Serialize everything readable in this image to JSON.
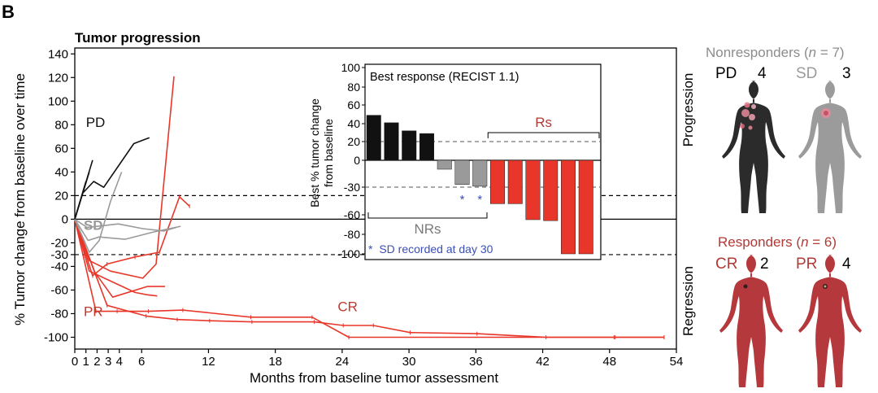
{
  "panel_label": "B",
  "colors": {
    "pd": "#111111",
    "sd": "#9a9a9a",
    "responder": "#e8372a",
    "responder_text": "#c0392b",
    "title_red": "#b03a36",
    "nonresponder_title": "#8c8c8c",
    "note_blue": "#3b4fb5",
    "body_dark": "#2b2b2b",
    "body_grey": "#9b9b9b",
    "body_red": "#b5383c"
  },
  "right_panel": {
    "progression_label": "Progression",
    "regression_label": "Regression",
    "nonresponders": {
      "title": "Nonresponders (",
      "n_italic": "n",
      "title_end": " = 7)",
      "pd_label": "PD",
      "pd_count": "4",
      "sd_label": "SD",
      "sd_count": "3"
    },
    "responders": {
      "title": "Responders (",
      "n_italic": "n",
      "title_end": " = 6)",
      "cr_label": "CR",
      "cr_count": "2",
      "pr_label": "PR",
      "pr_count": "4"
    }
  },
  "chart_data": [
    {
      "type": "line",
      "title": "Tumor progression",
      "xlabel": "Months from baseline tumor assessment",
      "ylabel": "% Tumor change from baseline over time",
      "xlim": [
        0,
        54
      ],
      "ylim": [
        -110,
        145
      ],
      "xticks": [
        0,
        1,
        2,
        3,
        4,
        6,
        12,
        18,
        24,
        30,
        36,
        42,
        48,
        54
      ],
      "yticks": [
        140,
        120,
        100,
        80,
        60,
        40,
        20,
        0,
        -20,
        -30,
        -40,
        -60,
        -80,
        -100
      ],
      "reference_lines": [
        20,
        -30
      ],
      "annotations": [
        {
          "text": "PD",
          "x": 1.0,
          "y": 78,
          "group": "pd"
        },
        {
          "text": "SD",
          "x": 0.8,
          "y": -9,
          "group": "sd"
        },
        {
          "text": "PR",
          "x": 0.8,
          "y": -82,
          "group": "responder"
        },
        {
          "text": "CR",
          "x": 23.6,
          "y": -78,
          "group": "responder"
        }
      ],
      "series": [
        {
          "name": "PD-1",
          "group": "pd",
          "x": [
            0,
            1.6
          ],
          "y": [
            0,
            50
          ]
        },
        {
          "name": "PD-2",
          "group": "pd",
          "x": [
            0,
            0.7,
            1.7,
            2.6,
            5.3,
            6.4,
            6.7
          ],
          "y": [
            0,
            22,
            32,
            27,
            64,
            68,
            69
          ]
        },
        {
          "name": "PD-3",
          "group": "pd",
          "x": [
            0,
            1.0
          ],
          "y": [
            0,
            32
          ]
        },
        {
          "name": "PD-4",
          "group": "pd",
          "x": [
            0,
            1.3
          ],
          "y": [
            0,
            40
          ]
        },
        {
          "name": "SD-1",
          "group": "sd",
          "x": [
            0,
            1.3,
            2.2,
            3.2,
            4.2
          ],
          "y": [
            0,
            -28,
            -18,
            15,
            40
          ]
        },
        {
          "name": "SD-2",
          "group": "sd",
          "x": [
            0,
            1.2,
            2.2,
            4.5,
            7.0,
            9.5
          ],
          "y": [
            0,
            -18,
            -15,
            -17,
            -11,
            -6
          ]
        },
        {
          "name": "SD-3",
          "group": "sd",
          "x": [
            0,
            1.1,
            3.9,
            6.1,
            8.0,
            9.1
          ],
          "y": [
            0,
            -7,
            -4,
            -8,
            -10,
            -7
          ]
        },
        {
          "name": "R-1",
          "group": "responder",
          "x": [
            0,
            1.3,
            3.2,
            6.1,
            7.3,
            8.9
          ],
          "y": [
            0,
            -35,
            -44,
            -50,
            -38,
            121
          ]
        },
        {
          "name": "R-2",
          "group": "responder",
          "x": [
            0,
            1.6,
            2.9,
            5.4,
            7.6,
            9.4,
            10.3
          ],
          "y": [
            0,
            -48,
            -38,
            -32,
            -28,
            19,
            11
          ]
        },
        {
          "name": "R-3",
          "group": "responder",
          "x": [
            0,
            1.8,
            3.4,
            6.5,
            8.1
          ],
          "y": [
            0,
            -45,
            -66,
            -57,
            -57
          ]
        },
        {
          "name": "R-4",
          "group": "responder",
          "x": [
            0,
            1.3,
            2.9,
            5.4,
            6.5,
            7.4
          ],
          "y": [
            0,
            -44,
            -51,
            -62,
            -64,
            -65
          ]
        },
        {
          "name": "R-5",
          "group": "responder",
          "x": [
            0,
            1.9,
            3.8,
            6.6,
            9.7,
            15.8,
            21.3,
            24.6,
            48.5,
            52.9
          ],
          "y": [
            0,
            -78,
            -78,
            -78,
            -77,
            -83,
            -83,
            -100,
            -100,
            -100
          ]
        },
        {
          "name": "R-6",
          "group": "responder",
          "x": [
            0,
            2.9,
            6.4,
            9.2,
            12.1,
            15.9,
            21.5,
            24.1,
            26.8,
            30.1,
            36.1,
            42.3,
            48.4,
            52.9
          ],
          "y": [
            0,
            -73,
            -82,
            -85,
            -86,
            -87,
            -87,
            -90,
            -90,
            -96,
            -97,
            -100,
            -100,
            -100
          ]
        }
      ]
    },
    {
      "type": "bar",
      "title": "Best response (RECIST 1.1)",
      "ylabel": "Best % tumor change from baseline",
      "ylim": [
        -105,
        100
      ],
      "yticks": [
        100,
        80,
        60,
        40,
        20,
        0,
        -30,
        -60,
        -80,
        -100
      ],
      "reference_lines": [
        20,
        -30
      ],
      "values": [
        49,
        41,
        32,
        29,
        -10,
        -27,
        -29,
        -48,
        -48,
        -65,
        -66,
        -100,
        -100
      ],
      "groups": [
        "pd",
        "pd",
        "pd",
        "pd",
        "sd",
        "sd",
        "sd",
        "responder",
        "responder",
        "responder",
        "responder",
        "responder",
        "responder"
      ],
      "starred": [
        5,
        6
      ],
      "star_symbol": "*",
      "bracket_nrs_label": "NRs",
      "bracket_rs_label": "Rs",
      "note_symbol": "*",
      "note_text": "SD recorded at day 30"
    }
  ]
}
